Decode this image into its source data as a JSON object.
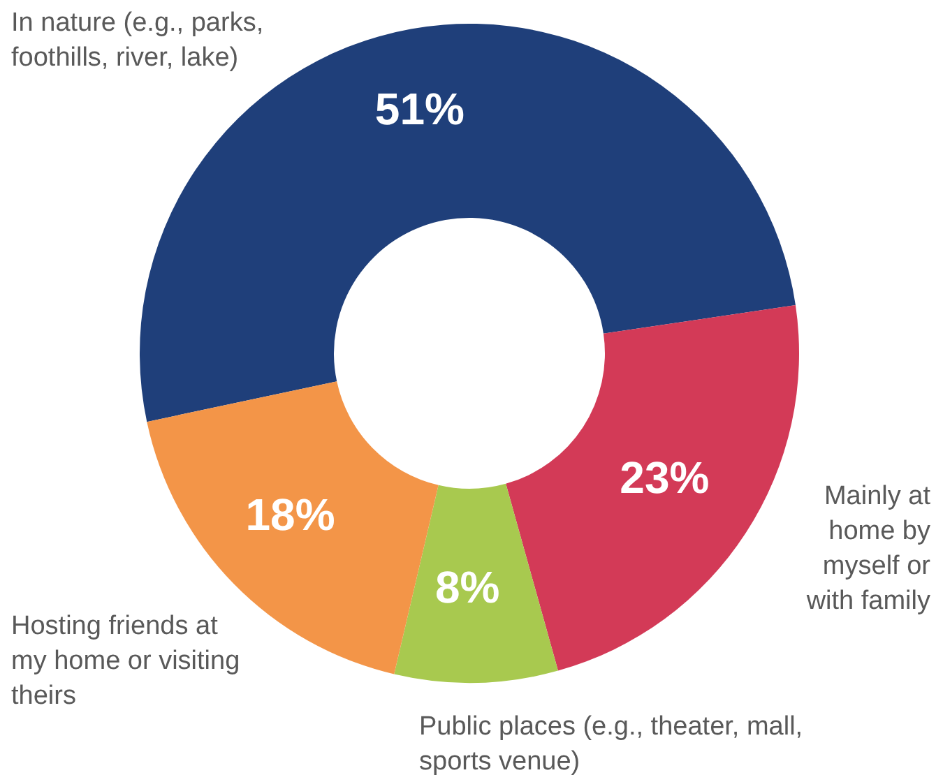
{
  "chart_data": {
    "type": "donut",
    "categories": [
      "In nature (e.g., parks, foothills, river, lake)",
      "Mainly at home by myself or with family",
      "Public places (e.g., theater, mall, sports venue)",
      "Hosting friends at my home or visiting theirs"
    ],
    "values": [
      51,
      23,
      8,
      18
    ],
    "value_labels": [
      "51%",
      "23%",
      "8%",
      "18%"
    ],
    "colors": [
      "#1f3f7a",
      "#d33a57",
      "#a8c94f",
      "#f39548"
    ]
  }
}
